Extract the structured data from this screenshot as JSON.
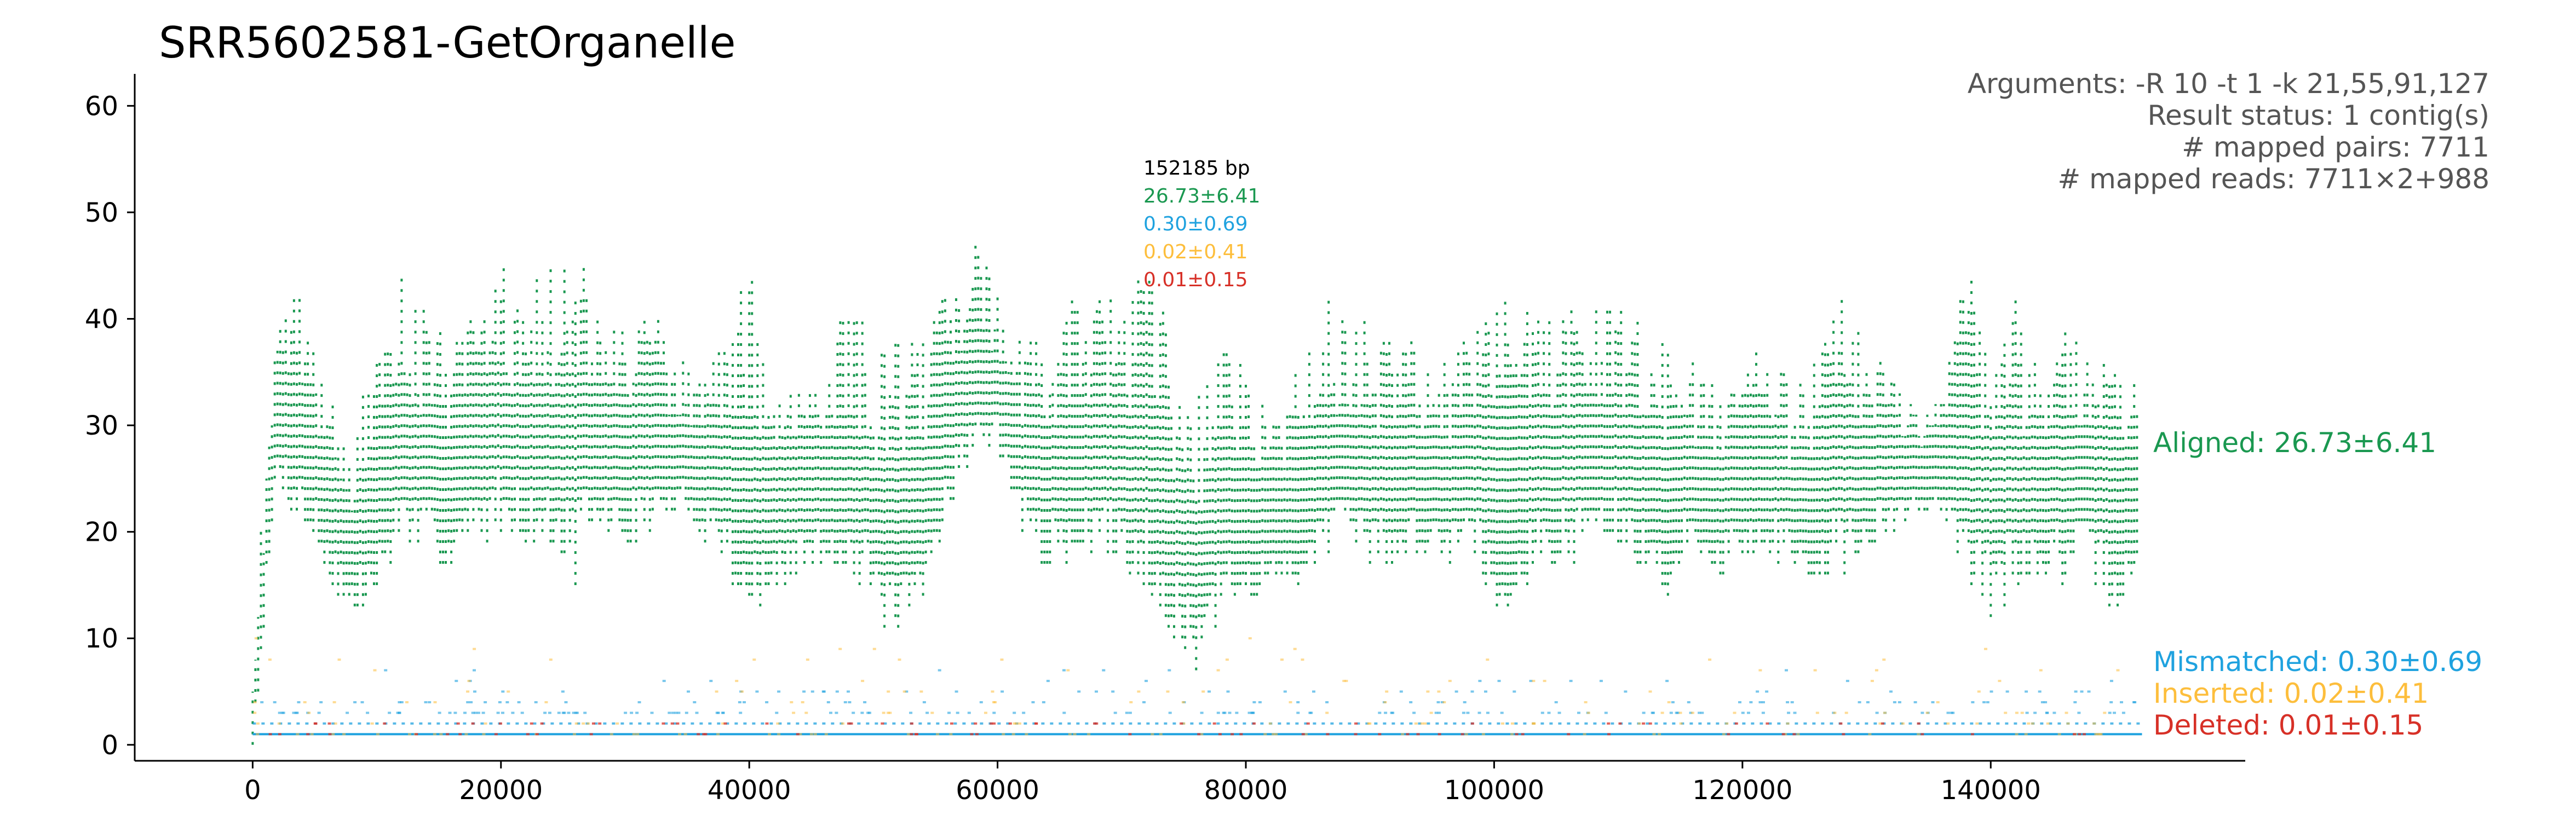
{
  "title": "SRR5602581-GetOrganelle",
  "arguments": [
    "Arguments: -R 10 -t 1 -k 21,55,91,127",
    "Result status: 1 contig(s)",
    "# mapped pairs: 7711",
    "# mapped reads: 7711×2+988"
  ],
  "colors": {
    "aligned": "#1a9850",
    "mismatched": "#1fa2df",
    "inserted": "#fdbe3c",
    "deleted": "#d73027",
    "axis": "#000000"
  },
  "chart_data": {
    "type": "scatter",
    "title": "SRR5602581-GetOrganelle",
    "xlabel": "",
    "ylabel": "",
    "xlim": [
      -9500,
      160500
    ],
    "ylim": [
      -1.5,
      63
    ],
    "xticks": [
      0,
      20000,
      40000,
      60000,
      80000,
      100000,
      120000,
      140000
    ],
    "xtick_labels": [
      "0",
      "20000",
      "40000",
      "60000",
      "80000",
      "100000",
      "120000",
      "140000"
    ],
    "yticks": [
      0,
      10,
      20,
      30,
      40,
      50,
      60
    ],
    "ytick_labels": [
      "0",
      "10",
      "20",
      "30",
      "40",
      "50",
      "60"
    ],
    "genome_length_bp": 152185,
    "peak_annotation": {
      "length_label": "152185 bp",
      "aligned": "26.73±6.41",
      "mismatched": "0.30±0.69",
      "inserted": "0.02±0.41",
      "deleted": "0.01±0.15"
    },
    "series": [
      {
        "name": "Aligned: 26.73±6.41",
        "step": 2000,
        "x": [
          0,
          2000,
          4000,
          6000,
          8000,
          10000,
          12000,
          14000,
          16000,
          18000,
          20000,
          22000,
          24000,
          26000,
          28000,
          30000,
          32000,
          34000,
          36000,
          38000,
          40000,
          42000,
          44000,
          46000,
          48000,
          50000,
          52000,
          54000,
          56000,
          58000,
          60000,
          62000,
          64000,
          66000,
          68000,
          70000,
          72000,
          74000,
          76000,
          78000,
          80000,
          82000,
          84000,
          86000,
          88000,
          90000,
          92000,
          94000,
          96000,
          98000,
          100000,
          102000,
          104000,
          106000,
          108000,
          110000,
          112000,
          114000,
          116000,
          118000,
          120000,
          122000,
          124000,
          126000,
          128000,
          130000,
          132000,
          134000,
          136000,
          138000,
          140000,
          142000,
          144000,
          146000,
          148000,
          150000,
          152000
        ],
        "min": [
          0,
          24,
          20,
          15,
          11,
          13,
          19,
          17,
          16,
          18,
          20,
          19,
          18,
          15,
          20,
          18,
          20,
          21,
          20,
          17,
          10,
          13,
          16,
          17,
          16,
          13,
          8,
          12,
          22,
          27,
          28,
          20,
          16,
          17,
          18,
          16,
          15,
          10,
          7,
          11,
          13,
          14,
          14,
          18,
          18,
          17,
          16,
          18,
          17,
          19,
          12,
          13,
          17,
          16,
          19,
          18,
          15,
          14,
          18,
          16,
          17,
          18,
          16,
          15,
          16,
          17,
          19,
          21,
          22,
          16,
          12,
          14,
          16,
          15,
          16,
          12,
          12
        ],
        "max": [
          10,
          42,
          43,
          33,
          29,
          38,
          45,
          41,
          38,
          41,
          46,
          43,
          45,
          47,
          42,
          40,
          42,
          37,
          36,
          38,
          46,
          33,
          34,
          35,
          44,
          37,
          40,
          39,
          46,
          48,
          43,
          38,
          40,
          42,
          45,
          40,
          49,
          38,
          32,
          40,
          35,
          32,
          35,
          42,
          42,
          40,
          38,
          38,
          36,
          40,
          44,
          40,
          42,
          42,
          42,
          42,
          40,
          38,
          36,
          34,
          35,
          38,
          34,
          37,
          42,
          40,
          38,
          32,
          34,
          49,
          35,
          42,
          37,
          41,
          38,
          37,
          33
        ],
        "mean": [
          3,
          34,
          31,
          26,
          20,
          24,
          30,
          28,
          27,
          29,
          31,
          30,
          29,
          31,
          29,
          28,
          29,
          28,
          28,
          27,
          27,
          23,
          24,
          24,
          27,
          23,
          22,
          24,
          31,
          36,
          34,
          27,
          26,
          27,
          29,
          27,
          29,
          22,
          18,
          23,
          22,
          22,
          23,
          28,
          28,
          27,
          26,
          27,
          25,
          28,
          27,
          26,
          28,
          28,
          29,
          28,
          26,
          25,
          26,
          25,
          25,
          27,
          24,
          25,
          28,
          27,
          27,
          26,
          27,
          32,
          24,
          26,
          25,
          27,
          26,
          24,
          23
        ]
      },
      {
        "name": "Mismatched: 0.30±0.69",
        "baseline": 1,
        "range": [
          0,
          8
        ]
      },
      {
        "name": "Inserted: 0.02±0.41",
        "baseline": 0,
        "range": [
          0,
          12
        ]
      },
      {
        "name": "Deleted: 0.01±0.15",
        "baseline": 0,
        "range": [
          0,
          4
        ]
      }
    ],
    "legend": "right",
    "grid": false
  }
}
